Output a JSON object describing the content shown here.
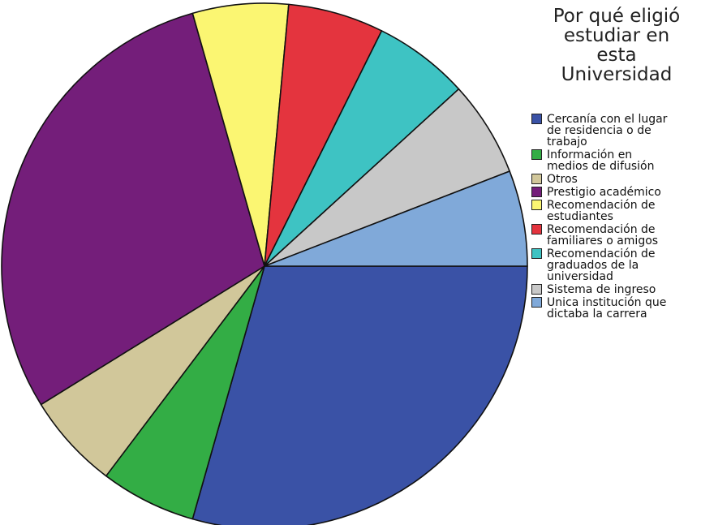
{
  "chart_data": {
    "type": "pie",
    "title": "Por qué eligió\nestudiar en\nesta\nUniversidad",
    "legend_position": "right",
    "slices": [
      {
        "label": "Cercanía con el lugar\nde residencia o de\ntrabajo",
        "value": 31.25,
        "color": "#3a52a6"
      },
      {
        "label": "Información en\nmedios de difusión",
        "value": 6.25,
        "color": "#33ad45"
      },
      {
        "label": "Otros",
        "value": 6.25,
        "color": "#d1c79a"
      },
      {
        "label": "Prestigio académico",
        "value": 31.25,
        "color": "#741e7a"
      },
      {
        "label": "Recomendación de\nestudiantes",
        "value": 6.25,
        "color": "#fbf672"
      },
      {
        "label": "Recomendación de\nfamiliares o amigos",
        "value": 6.25,
        "color": "#e4343e"
      },
      {
        "label": "Recomendación de\ngraduados de la\nuniversidad",
        "value": 6.25,
        "color": "#3ec3c3"
      },
      {
        "label": "Sistema de ingreso",
        "value": 6.25,
        "color": "#c8c8c8"
      },
      {
        "label": "Unica institución que\ndictaba la carrera",
        "value": 6.25,
        "color": "#80a9d9"
      }
    ]
  }
}
